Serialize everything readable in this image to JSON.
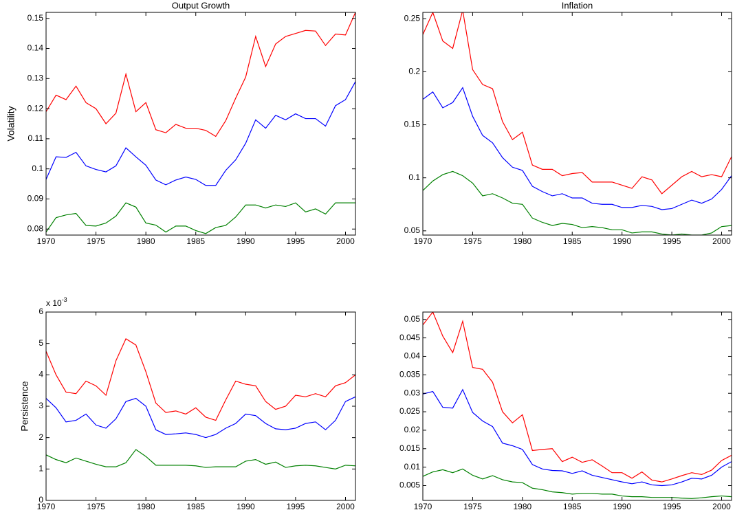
{
  "chart_data": [
    {
      "type": "line",
      "title": "Output Growth",
      "y_label": "Volatility",
      "x": [
        1970,
        1971,
        1972,
        1973,
        1974,
        1975,
        1976,
        1977,
        1978,
        1979,
        1980,
        1981,
        1982,
        1983,
        1984,
        1985,
        1986,
        1987,
        1988,
        1989,
        1990,
        1991,
        1992,
        1993,
        1994,
        1995,
        1996,
        1997,
        1998,
        1999,
        2000,
        2001
      ],
      "xlim": [
        1970,
        2001
      ],
      "xticks": [
        1970,
        1975,
        1980,
        1985,
        1990,
        1995,
        2000
      ],
      "ylim": [
        0.078,
        0.152
      ],
      "yticks": [
        0.08,
        0.09,
        0.1,
        0.11,
        0.12,
        0.13,
        0.14,
        0.15
      ],
      "series": [
        {
          "color": "#ff0000",
          "values": [
            0.119,
            0.1245,
            0.123,
            0.1275,
            0.122,
            0.12,
            0.115,
            0.1185,
            0.1315,
            0.119,
            0.122,
            0.113,
            0.112,
            0.1148,
            0.1135,
            0.1135,
            0.1128,
            0.1108,
            0.116,
            0.1235,
            0.1305,
            0.144,
            0.134,
            0.1415,
            0.144,
            0.145,
            0.146,
            0.1458,
            0.141,
            0.1448,
            0.1445,
            0.152
          ]
        },
        {
          "color": "#0000ff",
          "values": [
            0.0965,
            0.104,
            0.1038,
            0.1055,
            0.101,
            0.0998,
            0.099,
            0.101,
            0.107,
            0.104,
            0.1012,
            0.0963,
            0.0947,
            0.0963,
            0.0973,
            0.0965,
            0.0945,
            0.0945,
            0.0995,
            0.103,
            0.1085,
            0.1163,
            0.1135,
            0.1178,
            0.1163,
            0.1183,
            0.1167,
            0.1167,
            0.1142,
            0.121,
            0.123,
            0.129
          ]
        },
        {
          "color": "#008000",
          "values": [
            0.079,
            0.0838,
            0.0847,
            0.0852,
            0.0812,
            0.081,
            0.082,
            0.0843,
            0.0887,
            0.0873,
            0.082,
            0.0813,
            0.079,
            0.081,
            0.081,
            0.0795,
            0.0785,
            0.0805,
            0.0812,
            0.084,
            0.088,
            0.088,
            0.087,
            0.088,
            0.0875,
            0.0887,
            0.0857,
            0.0867,
            0.085,
            0.0887,
            0.0887,
            0.0887
          ]
        }
      ]
    },
    {
      "type": "line",
      "title": "Inflation",
      "x": [
        1970,
        1971,
        1972,
        1973,
        1974,
        1975,
        1976,
        1977,
        1978,
        1979,
        1980,
        1981,
        1982,
        1983,
        1984,
        1985,
        1986,
        1987,
        1988,
        1989,
        1990,
        1991,
        1992,
        1993,
        1994,
        1995,
        1996,
        1997,
        1998,
        1999,
        2000,
        2001
      ],
      "xlim": [
        1970,
        2001
      ],
      "xticks": [
        1970,
        1975,
        1980,
        1985,
        1990,
        1995,
        2000
      ],
      "ylim": [
        0.046,
        0.256
      ],
      "yticks": [
        0.05,
        0.1,
        0.15,
        0.2,
        0.25
      ],
      "series": [
        {
          "color": "#ff0000",
          "values": [
            0.235,
            0.256,
            0.229,
            0.222,
            0.258,
            0.202,
            0.188,
            0.184,
            0.153,
            0.136,
            0.143,
            0.112,
            0.108,
            0.108,
            0.102,
            0.104,
            0.105,
            0.096,
            0.096,
            0.096,
            0.093,
            0.09,
            0.101,
            0.098,
            0.085,
            0.093,
            0.101,
            0.106,
            0.101,
            0.103,
            0.101,
            0.12
          ]
        },
        {
          "color": "#0000ff",
          "values": [
            0.174,
            0.181,
            0.166,
            0.171,
            0.185,
            0.158,
            0.14,
            0.133,
            0.119,
            0.11,
            0.107,
            0.092,
            0.087,
            0.083,
            0.085,
            0.081,
            0.081,
            0.076,
            0.075,
            0.075,
            0.072,
            0.072,
            0.074,
            0.073,
            0.07,
            0.071,
            0.075,
            0.079,
            0.076,
            0.08,
            0.089,
            0.102
          ]
        },
        {
          "color": "#008000",
          "values": [
            0.088,
            0.097,
            0.103,
            0.106,
            0.102,
            0.095,
            0.083,
            0.085,
            0.081,
            0.076,
            0.075,
            0.062,
            0.058,
            0.055,
            0.057,
            0.056,
            0.053,
            0.054,
            0.053,
            0.051,
            0.051,
            0.048,
            0.049,
            0.049,
            0.047,
            0.046,
            0.047,
            0.046,
            0.046,
            0.048,
            0.054,
            0.055
          ]
        }
      ]
    },
    {
      "type": "line",
      "y_label": "Persistence",
      "axis_multiplier": "x 10",
      "axis_multiplier_exponent": "-3",
      "x": [
        1970,
        1971,
        1972,
        1973,
        1974,
        1975,
        1976,
        1977,
        1978,
        1979,
        1980,
        1981,
        1982,
        1983,
        1984,
        1985,
        1986,
        1987,
        1988,
        1989,
        1990,
        1991,
        1992,
        1993,
        1994,
        1995,
        1996,
        1997,
        1998,
        1999,
        2000,
        2001
      ],
      "xlim": [
        1970,
        2001
      ],
      "xticks": [
        1970,
        1975,
        1980,
        1985,
        1990,
        1995,
        2000
      ],
      "ylim": [
        0,
        6
      ],
      "yticks": [
        0,
        1,
        2,
        3,
        4,
        5,
        6
      ],
      "series": [
        {
          "color": "#ff0000",
          "values": [
            4.75,
            4.0,
            3.45,
            3.4,
            3.8,
            3.65,
            3.35,
            4.45,
            5.15,
            4.95,
            4.1,
            3.1,
            2.8,
            2.85,
            2.75,
            2.95,
            2.65,
            2.55,
            3.2,
            3.8,
            3.7,
            3.65,
            3.15,
            2.9,
            3.0,
            3.35,
            3.3,
            3.4,
            3.3,
            3.65,
            3.75,
            4.0
          ]
        },
        {
          "color": "#0000ff",
          "values": [
            3.25,
            2.95,
            2.5,
            2.55,
            2.75,
            2.4,
            2.3,
            2.6,
            3.15,
            3.25,
            3.0,
            2.25,
            2.1,
            2.12,
            2.15,
            2.1,
            2.0,
            2.1,
            2.3,
            2.45,
            2.75,
            2.7,
            2.45,
            2.28,
            2.25,
            2.3,
            2.45,
            2.5,
            2.25,
            2.55,
            3.15,
            3.3
          ]
        },
        {
          "color": "#008000",
          "values": [
            1.45,
            1.3,
            1.2,
            1.35,
            1.25,
            1.15,
            1.07,
            1.07,
            1.2,
            1.62,
            1.4,
            1.12,
            1.12,
            1.12,
            1.12,
            1.1,
            1.05,
            1.07,
            1.07,
            1.07,
            1.25,
            1.3,
            1.15,
            1.22,
            1.05,
            1.1,
            1.12,
            1.1,
            1.05,
            1.0,
            1.12,
            1.1
          ]
        }
      ]
    },
    {
      "type": "line",
      "x": [
        1970,
        1971,
        1972,
        1973,
        1974,
        1975,
        1976,
        1977,
        1978,
        1979,
        1980,
        1981,
        1982,
        1983,
        1984,
        1985,
        1986,
        1987,
        1988,
        1989,
        1990,
        1991,
        1992,
        1993,
        1994,
        1995,
        1996,
        1997,
        1998,
        1999,
        2000,
        2001
      ],
      "xlim": [
        1970,
        2001
      ],
      "xticks": [
        1970,
        1975,
        1980,
        1985,
        1990,
        1995,
        2000
      ],
      "ylim": [
        0.001,
        0.052
      ],
      "yticks": [
        0.005,
        0.01,
        0.015,
        0.02,
        0.025,
        0.03,
        0.035,
        0.04,
        0.045,
        0.05
      ],
      "series": [
        {
          "color": "#ff0000",
          "values": [
            0.0485,
            0.052,
            0.0455,
            0.041,
            0.0495,
            0.037,
            0.0365,
            0.033,
            0.025,
            0.022,
            0.0242,
            0.0145,
            0.0148,
            0.015,
            0.0115,
            0.0127,
            0.0113,
            0.012,
            0.0103,
            0.0085,
            0.0085,
            0.007,
            0.0087,
            0.0065,
            0.006,
            0.0068,
            0.0077,
            0.0085,
            0.008,
            0.0092,
            0.0118,
            0.0132
          ]
        },
        {
          "color": "#0000ff",
          "values": [
            0.0298,
            0.0305,
            0.0262,
            0.026,
            0.031,
            0.0248,
            0.0225,
            0.021,
            0.0165,
            0.0158,
            0.0148,
            0.0107,
            0.0095,
            0.0091,
            0.009,
            0.0083,
            0.009,
            0.0078,
            0.0072,
            0.0066,
            0.006,
            0.0055,
            0.006,
            0.0052,
            0.005,
            0.0052,
            0.006,
            0.007,
            0.0068,
            0.0078,
            0.01,
            0.0115
          ]
        },
        {
          "color": "#008000",
          "values": [
            0.0075,
            0.0087,
            0.0093,
            0.0085,
            0.0095,
            0.0078,
            0.0068,
            0.0077,
            0.0066,
            0.006,
            0.0058,
            0.0043,
            0.0039,
            0.0033,
            0.0031,
            0.0027,
            0.0029,
            0.0029,
            0.0027,
            0.0027,
            0.0022,
            0.002,
            0.002,
            0.0018,
            0.0018,
            0.0018,
            0.0016,
            0.0015,
            0.0017,
            0.002,
            0.0022,
            0.002
          ]
        }
      ]
    }
  ]
}
